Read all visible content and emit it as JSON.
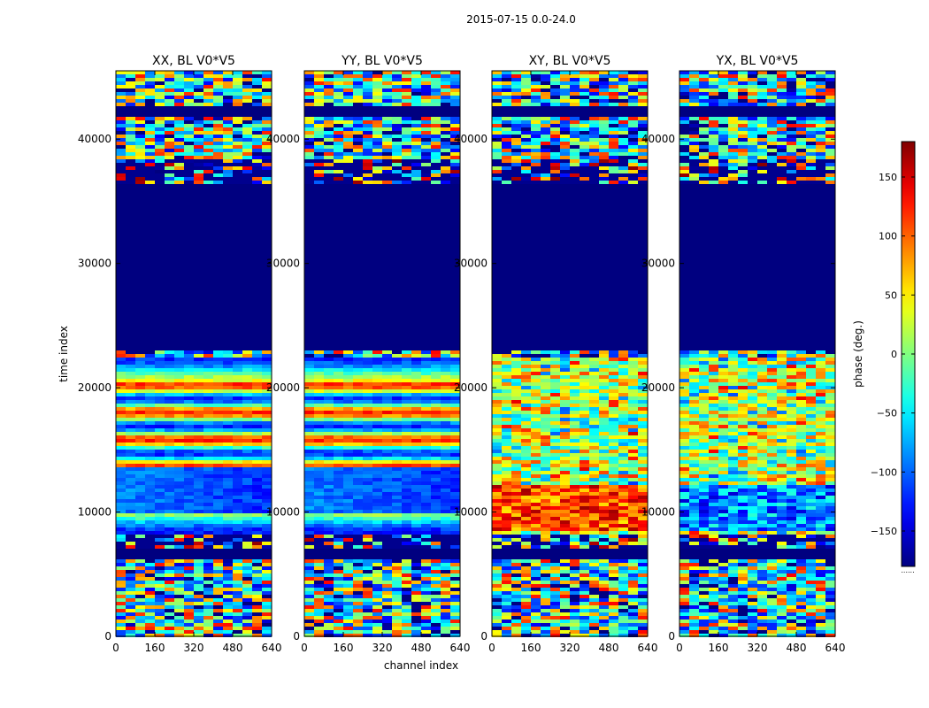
{
  "figure_title": "2015-07-15 0.0-24.0",
  "chart_data": {
    "type": "heatmap",
    "suptitle": "2015-07-15 0.0-24.0",
    "xlabel": "channel index",
    "ylabel": "time index",
    "xlim": [
      0,
      640
    ],
    "ylim": [
      0,
      45500
    ],
    "xticks": [
      "0",
      "160",
      "320",
      "480",
      "640"
    ],
    "yticks": [
      "0",
      "10000",
      "20000",
      "30000",
      "40000"
    ],
    "xtick_values": [
      0,
      160,
      320,
      480,
      640
    ],
    "ytick_values": [
      0,
      10000,
      20000,
      30000,
      40000
    ],
    "panels": [
      {
        "title": "XX, BL V0*V5",
        "pol": "XX"
      },
      {
        "title": "YY, BL V0*V5",
        "pol": "YY"
      },
      {
        "title": "XY, BL V0*V5",
        "pol": "XY"
      },
      {
        "title": "YX, BL V0*V5",
        "pol": "YX"
      }
    ],
    "colorbar": {
      "label": "phase (deg.)",
      "range": [
        -180,
        180
      ],
      "colormap": "jet",
      "ticks": [
        "150",
        "100",
        "50",
        "0",
        "−50",
        "−100",
        "−150"
      ],
      "tick_values": [
        150,
        100,
        50,
        0,
        -50,
        -100,
        -150
      ],
      "extra_label": "......"
    },
    "regions": [
      {
        "from": 0,
        "to": 6200,
        "kind": "noise"
      },
      {
        "from": 6200,
        "to": 7200,
        "kind": "flagged"
      },
      {
        "from": 7200,
        "to": 8200,
        "kind": "striped"
      },
      {
        "from": 8200,
        "to": 22500,
        "kind": "signal"
      },
      {
        "from": 22500,
        "to": 23000,
        "kind": "noise"
      },
      {
        "from": 23000,
        "to": 36500,
        "kind": "flagged"
      },
      {
        "from": 36500,
        "to": 38500,
        "kind": "striped"
      },
      {
        "from": 38500,
        "to": 42000,
        "kind": "noise"
      },
      {
        "from": 42000,
        "to": 42700,
        "kind": "flagged"
      },
      {
        "from": 42700,
        "to": 45500,
        "kind": "noise"
      }
    ]
  }
}
